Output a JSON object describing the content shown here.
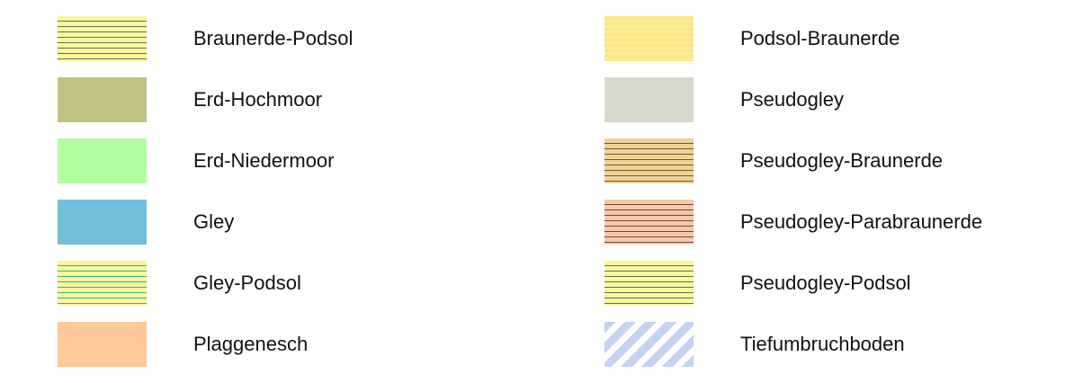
{
  "legend": {
    "left_column": [
      {
        "label": "Braunerde-Podsol",
        "fill": "#fbf6a0",
        "pattern": "horizontal-lines",
        "line_color": "#6f6a52"
      },
      {
        "label": "Erd-Hochmoor",
        "fill": "#c0c183",
        "pattern": "solid"
      },
      {
        "label": "Erd-Niedermoor",
        "fill": "#b3fea3",
        "pattern": "solid"
      },
      {
        "label": "Gley",
        "fill": "#71bfd8",
        "pattern": "solid"
      },
      {
        "label": "Gley-Podsol",
        "fill": "#fbf6a0",
        "pattern": "horizontal-lines",
        "line_color": "#3ab37a"
      },
      {
        "label": "Plaggenesch",
        "fill": "#fec998",
        "pattern": "solid"
      }
    ],
    "right_column": [
      {
        "label": "Podsol-Braunerde",
        "fill": "#f9e78a",
        "pattern": "horizontal-lines",
        "line_color": "#fbf6a0"
      },
      {
        "label": "Pseudogley",
        "fill": "#d9d9c9",
        "pattern": "solid"
      },
      {
        "label": "Pseudogley-Braunerde",
        "fill": "#f2d193",
        "pattern": "horizontal-lines",
        "line_color": "#6b5a3a"
      },
      {
        "label": "Pseudogley-Parabraunerde",
        "fill": "#f7c7a8",
        "pattern": "horizontal-lines",
        "line_color": "#6b4a3a"
      },
      {
        "label": "Pseudogley-Podsol",
        "fill": "#fbf6a0",
        "pattern": "horizontal-lines",
        "line_color": "#6f6a52"
      },
      {
        "label": "Tiefumbruchboden",
        "fill": "#ffffff",
        "pattern": "diagonal-stripes",
        "line_color": "#c4d3f1"
      }
    ]
  }
}
